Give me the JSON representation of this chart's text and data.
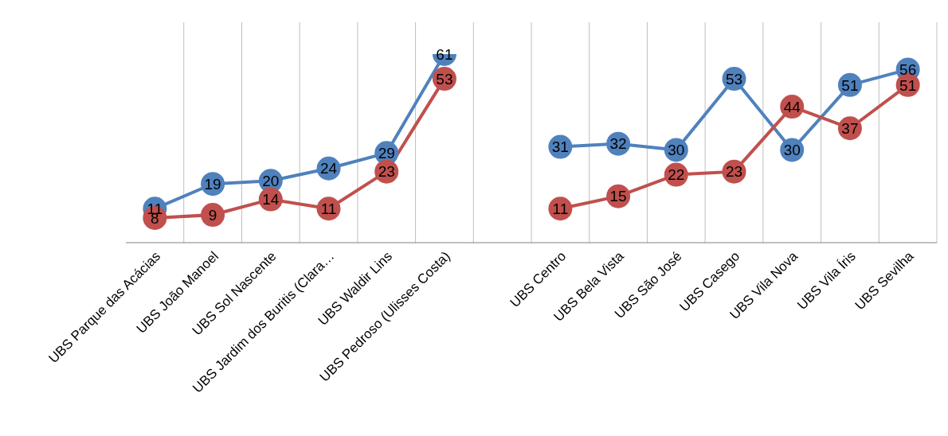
{
  "chart_data": {
    "type": "line",
    "categories": [
      "UBS Parque das Acácias",
      "UBS João Manoel",
      "UBS Sol Nascente",
      "UBS Jardim dos Buritis (Clara…",
      "UBS Waldir Lins",
      "UBS Pedroso (Ulisses Costa)",
      null,
      "UBS Centro",
      "UBS Bela Vista",
      "UBS São José",
      "UBS Casego",
      "UBS Vila Nova",
      "UBS Vila Íris",
      "UBS Sevilha"
    ],
    "series": [
      {
        "color": "#4f81bd",
        "values": [
          11,
          19,
          20,
          24,
          29,
          61,
          null,
          31,
          32,
          30,
          53,
          30,
          51,
          56
        ]
      },
      {
        "color": "#c0504d",
        "values": [
          8,
          9,
          14,
          11,
          23,
          53,
          null,
          11,
          15,
          22,
          23,
          44,
          37,
          51
        ]
      }
    ],
    "data_labels": true,
    "marker": "circle",
    "grid": "x",
    "tick_labels": "x"
  }
}
